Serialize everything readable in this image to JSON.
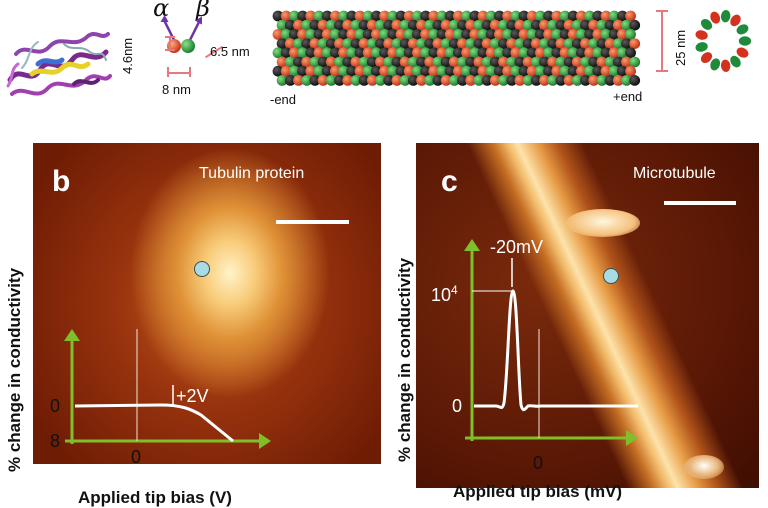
{
  "panel_a": {
    "alpha": "α",
    "beta": "β",
    "dim_height": "4.6nm",
    "dim_length": "6.5 nm",
    "dim_width": "8 nm",
    "dim_diameter": "25 nm",
    "minus_end": "-end",
    "plus_end": "+end",
    "colors": {
      "alpha": "#1f8a3a",
      "beta": "#d2321e",
      "dark": "#151515"
    }
  },
  "panel_b": {
    "letter": "b",
    "title": "Tubulin protein",
    "ylabel": "% change in conductivity",
    "xlabel": "Applied tip bias (V)",
    "tick_y_zero": "0",
    "tick_y_bottom": "8",
    "tick_x_zero": "0",
    "annotation": "+2V"
  },
  "panel_c": {
    "letter": "c",
    "title": "Microtubule",
    "ylabel": "% change in conductivity",
    "xlabel": "Applied tip bias (mV)",
    "tick_y_zero": "0",
    "tick_y_top_base": "10",
    "tick_y_top_exp": "4",
    "tick_x_zero": "0",
    "annotation": "-20mV"
  },
  "colors": {
    "axis": "#7fbf2a",
    "curve": "#ffffff",
    "marker": "#a9dbe4"
  }
}
